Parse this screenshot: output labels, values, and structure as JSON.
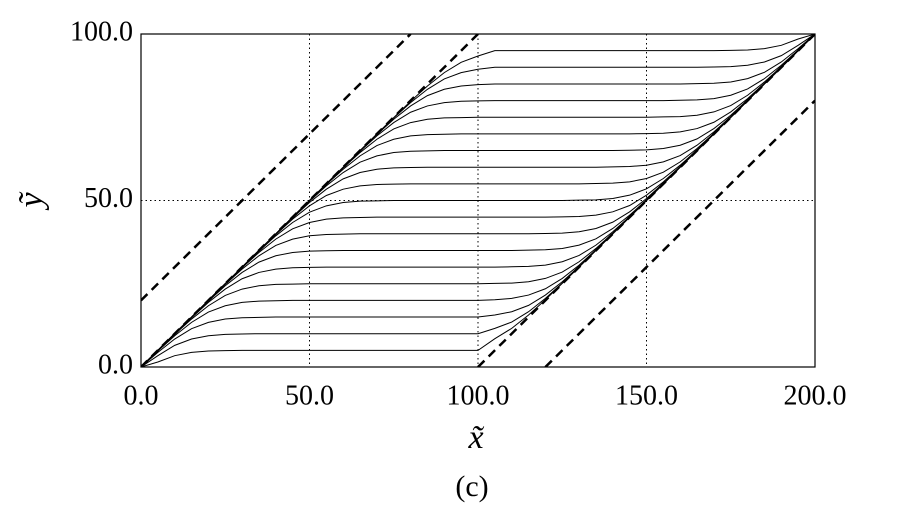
{
  "chart_data": {
    "type": "line",
    "x_label": "x̃",
    "y_label": "ỹ",
    "subtitle": "(c)",
    "color": "#000000",
    "grid": true,
    "grid_style": "dotted",
    "reference_style": "dashed",
    "xlim": [
      0,
      200
    ],
    "ylim": [
      0,
      100
    ],
    "xticks": [
      {
        "value": 0,
        "label": "0.0"
      },
      {
        "value": 50,
        "label": "50.0"
      },
      {
        "value": 100,
        "label": "100.0"
      },
      {
        "value": 150,
        "label": "150.0"
      },
      {
        "value": 200,
        "label": "200.0"
      }
    ],
    "yticks": [
      {
        "value": 0,
        "label": "0.0"
      },
      {
        "value": 50,
        "label": "50.0"
      },
      {
        "value": 100,
        "label": "100.0"
      }
    ],
    "x": [
      0,
      5,
      10,
      15,
      20,
      25,
      30,
      35,
      40,
      45,
      50,
      55,
      60,
      65,
      70,
      75,
      80,
      85,
      90,
      95,
      100,
      105,
      110,
      115,
      120,
      125,
      130,
      135,
      140,
      145,
      150,
      155,
      160,
      165,
      170,
      175,
      180,
      185,
      190,
      195,
      200
    ],
    "series": [
      {
        "values": [
          0,
          1.5,
          3.4,
          4.4,
          4.8,
          4.9,
          5,
          5,
          5,
          5,
          5,
          5,
          5,
          5,
          5,
          5,
          5,
          5,
          5,
          5,
          5,
          8.5,
          11.6,
          15.6,
          20.2,
          25.1,
          30,
          35,
          40,
          45,
          50,
          55,
          60,
          65,
          70,
          75,
          80,
          85,
          90,
          95,
          100
        ]
      },
      {
        "values": [
          0,
          3.4,
          6.5,
          8.4,
          9.4,
          9.8,
          9.9,
          10,
          10,
          10,
          10,
          10,
          10,
          10,
          10,
          10,
          10,
          10,
          10,
          10,
          10,
          11.6,
          13.5,
          16.6,
          20.6,
          25.2,
          30.1,
          35,
          40,
          45,
          50,
          55,
          60,
          65,
          70,
          75,
          80,
          85,
          90,
          95,
          100
        ]
      },
      {
        "values": [
          0,
          4.4,
          8.4,
          11.5,
          13.4,
          14.4,
          14.8,
          14.9,
          15,
          15,
          15,
          15,
          15,
          15,
          15,
          15,
          15,
          15,
          15,
          15,
          15,
          15.6,
          16.6,
          18.5,
          21.6,
          25.6,
          30.2,
          35.1,
          40,
          45,
          50,
          55,
          60,
          65,
          70,
          75,
          80,
          85,
          90,
          95,
          100
        ]
      },
      {
        "values": [
          0,
          4.8,
          9.4,
          13.4,
          16.5,
          18.4,
          19.4,
          19.8,
          19.9,
          20,
          20,
          20,
          20,
          20,
          20,
          20,
          20,
          20,
          20,
          20,
          20,
          20.2,
          20.6,
          21.6,
          23.5,
          26.6,
          30.6,
          35.2,
          40.1,
          45,
          50,
          55,
          60,
          65,
          70,
          75,
          80,
          85,
          90,
          95,
          100
        ]
      },
      {
        "values": [
          0,
          4.9,
          9.8,
          14.4,
          18.4,
          21.5,
          23.4,
          24.4,
          24.8,
          24.9,
          25,
          25,
          25,
          25,
          25,
          25,
          25,
          25,
          25,
          25,
          25,
          25.1,
          25.2,
          25.6,
          26.6,
          28.5,
          31.6,
          35.6,
          40.2,
          45.1,
          50,
          55,
          60,
          65,
          70,
          75,
          80,
          85,
          90,
          95,
          100
        ]
      },
      {
        "values": [
          0,
          5,
          9.9,
          14.8,
          19.4,
          23.4,
          26.5,
          28.4,
          29.4,
          29.8,
          29.9,
          30,
          30,
          30,
          30,
          30,
          30,
          30,
          30,
          30,
          30,
          30,
          30.1,
          30.2,
          30.6,
          31.6,
          33.5,
          36.6,
          40.6,
          45.2,
          50.1,
          55,
          60,
          65,
          70,
          75,
          80,
          85,
          90,
          95,
          100
        ]
      },
      {
        "values": [
          0,
          5,
          10,
          14.9,
          19.8,
          24.4,
          28.4,
          31.5,
          33.4,
          34.4,
          34.8,
          34.9,
          35,
          35,
          35,
          35,
          35,
          35,
          35,
          35,
          35,
          35,
          35,
          35.1,
          35.2,
          35.6,
          36.6,
          38.5,
          41.6,
          45.6,
          50.2,
          55.1,
          60,
          65,
          70,
          75,
          80,
          85,
          90,
          95,
          100
        ]
      },
      {
        "values": [
          0,
          5,
          10,
          15,
          19.9,
          24.8,
          29.4,
          33.4,
          36.5,
          38.4,
          39.4,
          39.8,
          39.9,
          40,
          40,
          40,
          40,
          40,
          40,
          40,
          40,
          40,
          40,
          40,
          40.1,
          40.2,
          40.6,
          41.6,
          43.5,
          46.6,
          50.6,
          55.2,
          60.1,
          65,
          70,
          75,
          80,
          85,
          90,
          95,
          100
        ]
      },
      {
        "values": [
          0,
          5,
          10,
          15,
          20,
          24.9,
          29.8,
          34.4,
          38.4,
          41.5,
          43.4,
          44.4,
          44.8,
          44.9,
          45,
          45,
          45,
          45,
          45,
          45,
          45,
          45,
          45,
          45,
          45,
          45.1,
          45.2,
          45.6,
          46.6,
          48.5,
          51.6,
          55.6,
          60.2,
          65.1,
          70,
          75,
          80,
          85,
          90,
          95,
          100
        ]
      },
      {
        "values": [
          0,
          5,
          10,
          15,
          20,
          25,
          29.9,
          34.8,
          39.4,
          43.4,
          46.5,
          48.4,
          49.4,
          49.8,
          49.9,
          50,
          50,
          50,
          50,
          50,
          50,
          50,
          50,
          50,
          50,
          50,
          50.1,
          50.2,
          50.6,
          51.6,
          53.5,
          56.6,
          60.6,
          65.2,
          70.1,
          75,
          80,
          85,
          90,
          95,
          100
        ]
      },
      {
        "values": [
          0,
          5,
          10,
          15,
          20,
          25,
          30,
          34.9,
          39.8,
          44.4,
          48.4,
          51.5,
          53.4,
          54.4,
          54.8,
          54.9,
          55,
          55,
          55,
          55,
          55,
          55,
          55,
          55,
          55,
          55,
          55,
          55.1,
          55.2,
          55.6,
          56.6,
          58.5,
          61.6,
          65.6,
          70.2,
          75.1,
          80,
          85,
          90,
          95,
          100
        ]
      },
      {
        "values": [
          0,
          5,
          10,
          15,
          20,
          25,
          30,
          35,
          39.9,
          44.8,
          49.4,
          53.4,
          56.5,
          58.4,
          59.4,
          59.8,
          59.9,
          60,
          60,
          60,
          60,
          60,
          60,
          60,
          60,
          60,
          60,
          60,
          60.1,
          60.2,
          60.6,
          61.6,
          63.5,
          66.6,
          70.6,
          75.2,
          80.1,
          85,
          90,
          95,
          100
        ]
      },
      {
        "values": [
          0,
          5,
          10,
          15,
          20,
          25,
          30,
          35,
          40,
          44.9,
          49.8,
          54.4,
          58.4,
          61.5,
          63.4,
          64.4,
          64.8,
          64.9,
          65,
          65,
          65,
          65,
          65,
          65,
          65,
          65,
          65,
          65,
          65,
          65.1,
          65.2,
          65.6,
          66.6,
          68.5,
          71.6,
          75.6,
          80.2,
          85.1,
          90,
          95,
          100
        ]
      },
      {
        "values": [
          0,
          5,
          10,
          15,
          20,
          25,
          30,
          35,
          40,
          45,
          49.9,
          54.8,
          59.4,
          63.4,
          66.5,
          68.4,
          69.4,
          69.8,
          69.9,
          70,
          70,
          70,
          70,
          70,
          70,
          70,
          70,
          70,
          70,
          70,
          70.1,
          70.2,
          70.6,
          71.6,
          73.5,
          76.6,
          80.6,
          85.2,
          90.1,
          95,
          100
        ]
      },
      {
        "values": [
          0,
          5,
          10,
          15,
          20,
          25,
          30,
          35,
          40,
          45,
          50,
          54.9,
          59.8,
          64.4,
          68.4,
          71.5,
          73.4,
          74.4,
          74.8,
          74.9,
          75,
          75,
          75,
          75,
          75,
          75,
          75,
          75,
          75,
          75,
          75,
          75.1,
          75.2,
          75.6,
          76.6,
          78.5,
          81.6,
          85.6,
          90.2,
          95.1,
          100
        ]
      },
      {
        "values": [
          0,
          5,
          10,
          15,
          20,
          25,
          30,
          35,
          40,
          45,
          50,
          55,
          59.9,
          64.8,
          69.4,
          73.4,
          76.5,
          78.4,
          79.4,
          79.8,
          79.9,
          80,
          80,
          80,
          80,
          80,
          80,
          80,
          80,
          80,
          80,
          80,
          80.1,
          80.2,
          80.6,
          81.6,
          83.5,
          86.6,
          90.6,
          95.2,
          100
        ]
      },
      {
        "values": [
          0,
          5,
          10,
          15,
          20,
          25,
          30,
          35,
          40,
          45,
          50,
          55,
          60,
          64.9,
          69.8,
          74.4,
          78.4,
          81.5,
          83.4,
          84.4,
          84.8,
          85,
          85,
          85,
          85,
          85,
          85,
          85,
          85,
          85,
          85,
          85,
          85,
          85.1,
          85.2,
          85.6,
          86.6,
          88.5,
          91.6,
          95.6,
          100
        ]
      },
      {
        "values": [
          0,
          5,
          10,
          15,
          20,
          25,
          30,
          35,
          40,
          45,
          50,
          55,
          60,
          65,
          69.9,
          74.8,
          79.4,
          83.4,
          86.5,
          88.4,
          89.4,
          90,
          90,
          90,
          90,
          90,
          90,
          90,
          90,
          90,
          90,
          90,
          90,
          90,
          90.1,
          90.2,
          90.6,
          91.6,
          93.5,
          96.6,
          100
        ]
      },
      {
        "values": [
          0,
          5,
          10,
          15,
          20,
          25,
          30,
          35,
          40,
          45,
          50,
          55,
          60,
          65,
          70,
          74.9,
          79.8,
          84.4,
          88.4,
          91.5,
          93.4,
          95,
          95,
          95,
          95,
          95,
          95,
          95,
          95,
          95,
          95,
          95,
          95,
          95,
          95,
          95.1,
          95.2,
          95.6,
          96.6,
          98.5,
          100
        ]
      }
    ],
    "reference_lines": [
      {
        "x": [
          0,
          80
        ],
        "values": [
          20,
          100
        ]
      },
      {
        "x": [
          0,
          100
        ],
        "values": [
          0,
          100
        ]
      },
      {
        "x": [
          100,
          200
        ],
        "values": [
          0,
          100
        ]
      },
      {
        "x": [
          120,
          200
        ],
        "values": [
          0,
          80
        ]
      }
    ]
  }
}
